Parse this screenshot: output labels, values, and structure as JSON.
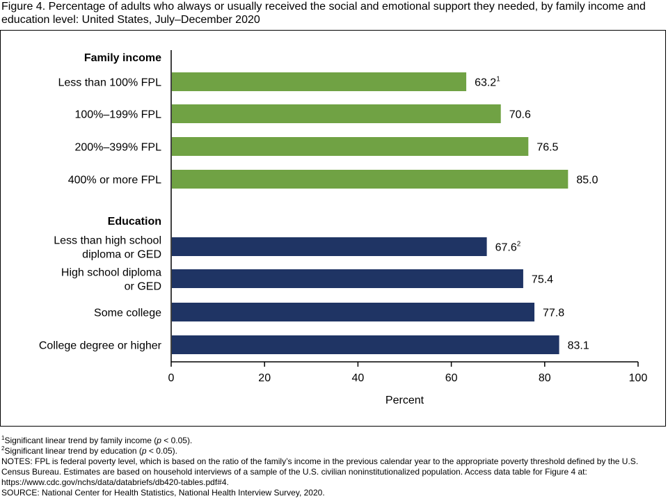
{
  "title": "Figure 4. Percentage of adults who always or usually received the social and emotional support they needed, by family income and education level: United States, July–December 2020",
  "chart_data": {
    "type": "bar",
    "orientation": "horizontal",
    "xlabel": "Percent",
    "xlim": [
      0,
      100
    ],
    "xticks": [
      "0",
      "20",
      "40",
      "60",
      "80",
      "100"
    ],
    "grid": false,
    "groups": [
      {
        "label": "Family income",
        "color": "#70a244",
        "items": [
          {
            "label_lines": [
              "Less than 100% FPL"
            ],
            "value": 63.2,
            "value_label": "63.2",
            "footnote": "1"
          },
          {
            "label_lines": [
              "100%–199% FPL"
            ],
            "value": 70.6,
            "value_label": "70.6",
            "footnote": ""
          },
          {
            "label_lines": [
              "200%–399% FPL"
            ],
            "value": 76.5,
            "value_label": "76.5",
            "footnote": ""
          },
          {
            "label_lines": [
              "400% or more FPL"
            ],
            "value": 85.0,
            "value_label": "85.0",
            "footnote": ""
          }
        ]
      },
      {
        "label": "Education",
        "color": "#1f3464",
        "items": [
          {
            "label_lines": [
              "Less than high school",
              "diploma or GED"
            ],
            "value": 67.6,
            "value_label": "67.6",
            "footnote": "2"
          },
          {
            "label_lines": [
              "High school diploma",
              "or GED"
            ],
            "value": 75.4,
            "value_label": "75.4",
            "footnote": ""
          },
          {
            "label_lines": [
              "Some college"
            ],
            "value": 77.8,
            "value_label": "77.8",
            "footnote": ""
          },
          {
            "label_lines": [
              "College degree or higher"
            ],
            "value": 83.1,
            "value_label": "83.1",
            "footnote": ""
          }
        ]
      }
    ]
  },
  "footnotes": {
    "note1_marker": "1",
    "note1_pre": "Significant linear trend by family income (",
    "note1_p": "p",
    "note1_post": " < 0.05).",
    "note2_marker": "2",
    "note2_pre": "Significant linear trend by education (",
    "note2_p": "p",
    "note2_post": " < 0.05).",
    "notes": "NOTES: FPL is federal poverty level, which is based on the ratio of the family’s income in the previous calendar year to the appropriate poverty threshold defined by the U.S. Census Bureau. Estimates are based on household interviews of a sample of the U.S. civilian noninstitutionalized population. Access data table for Figure 4 at: https://www.cdc.gov/nchs/data/databriefs/db420-tables.pdf#4.",
    "source": "SOURCE: National Center for Health Statistics, National Health Interview Survey, 2020."
  }
}
